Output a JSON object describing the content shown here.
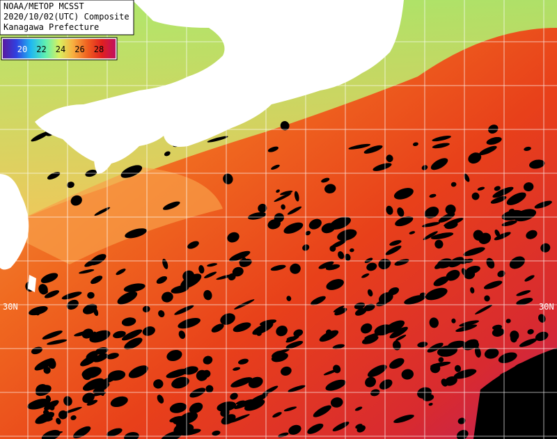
{
  "header": {
    "lines": [
      "NOAA/METOP MCSST",
      "2020/10/02(UTC) Composite",
      "Kanagawa Prefecture"
    ]
  },
  "legend": {
    "ticks": [
      20,
      22,
      24,
      26,
      28
    ]
  },
  "grid": {
    "lat_labels": [
      "30N",
      "30N"
    ]
  }
}
